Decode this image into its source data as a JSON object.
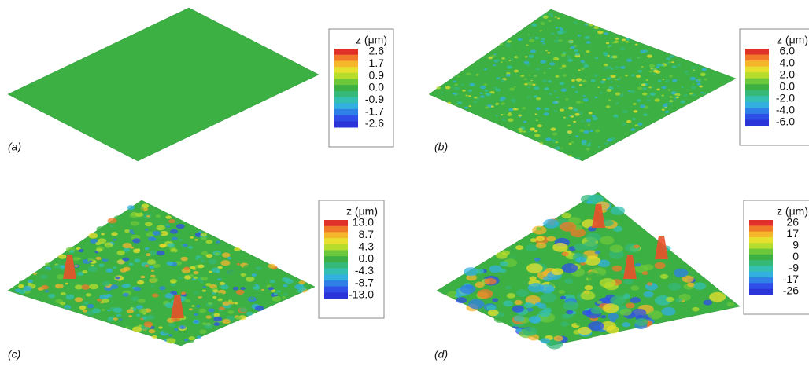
{
  "panels": [
    {
      "label": "(a)",
      "colorbar_title": "z (μm)",
      "ticks": [
        "2.6",
        "1.7",
        "0.9",
        "0.0",
        "-0.9",
        "-1.7",
        "-2.6"
      ]
    },
    {
      "label": "(b)",
      "colorbar_title": "z (μm)",
      "ticks": [
        "6.0",
        "4.0",
        "2.0",
        "0.0",
        "-2.0",
        "-4.0",
        "-6.0"
      ]
    },
    {
      "label": "(c)",
      "colorbar_title": "z (μm)",
      "ticks": [
        "13.0",
        "8.7",
        "4.3",
        "0.0",
        "-4.3",
        "-8.7",
        "-13.0"
      ]
    },
    {
      "label": "(d)",
      "colorbar_title": "z (μm)",
      "ticks": [
        "26",
        "17",
        "9",
        "0",
        "-9",
        "-17",
        "-26"
      ]
    }
  ]
}
